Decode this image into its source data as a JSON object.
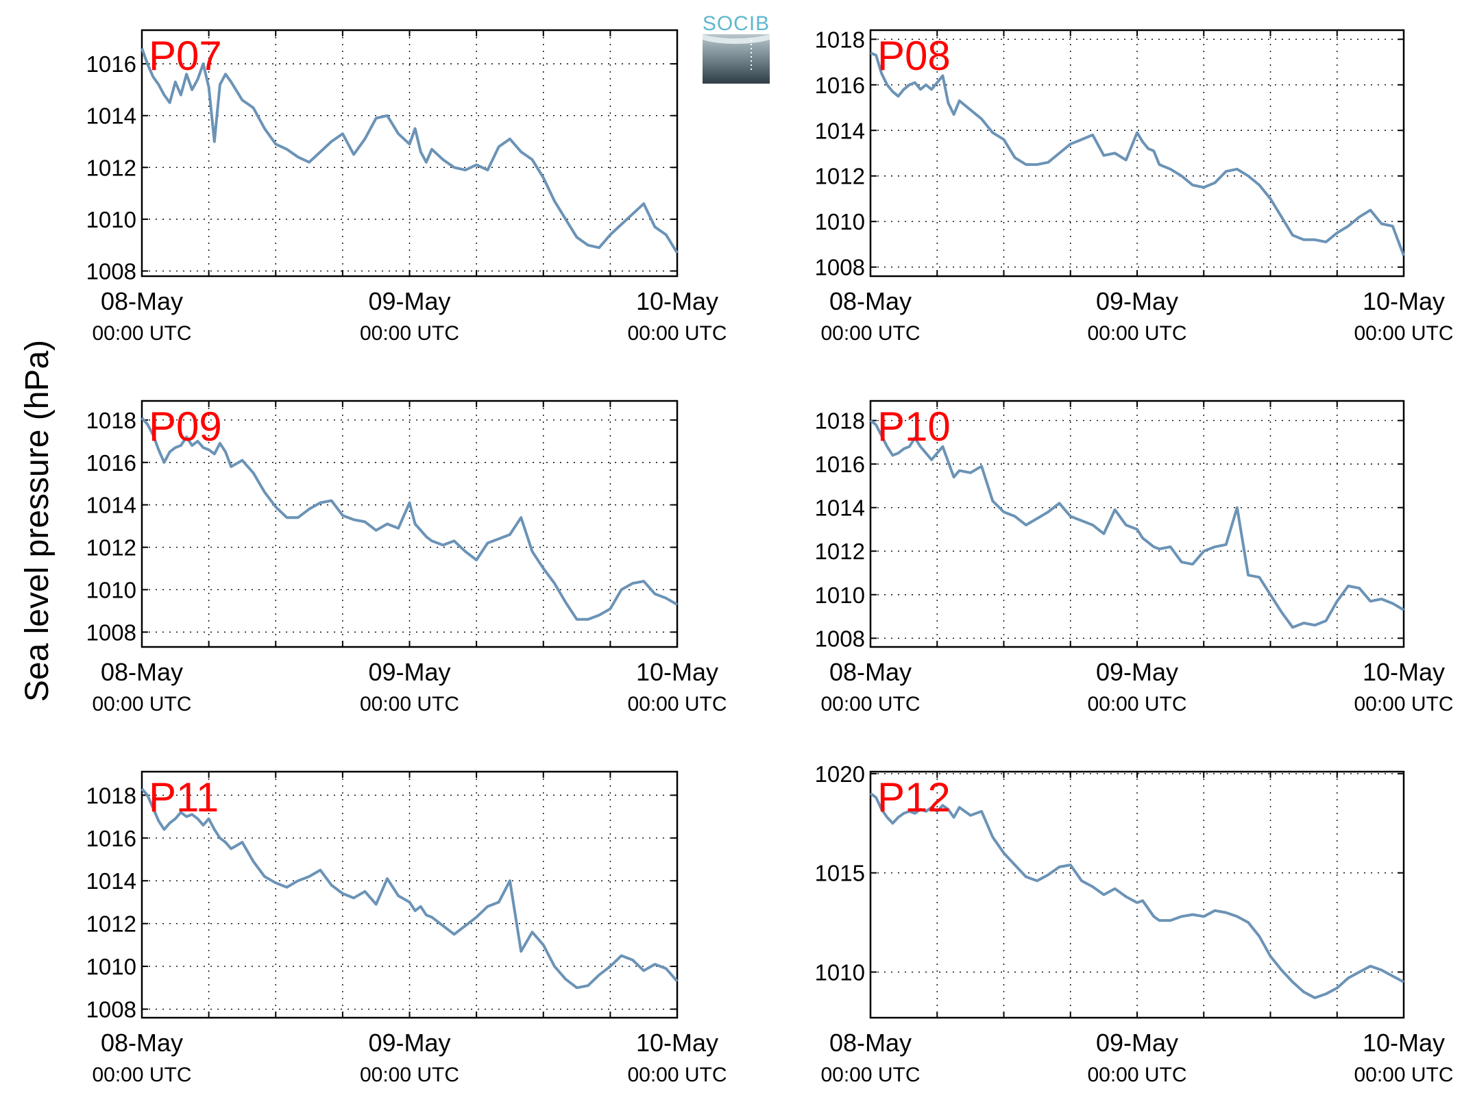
{
  "figure": {
    "ylabel": "Sea level pressure (hPa)",
    "logo_text": "SOCIB"
  },
  "chart_data": [
    {
      "type": "line",
      "title": "P07",
      "xlabel": "",
      "ylabel": "Sea level pressure (hPa)",
      "xlim": [
        0,
        48
      ],
      "ylim": [
        1007.8,
        1017.3
      ],
      "yticks": [
        1008,
        1010,
        1012,
        1014,
        1016
      ],
      "xticks": [
        0,
        24,
        48
      ],
      "xtick_labels": [
        [
          "08-May",
          "00:00 UTC"
        ],
        [
          "09-May",
          "00:00 UTC"
        ],
        [
          "10-May",
          "00:00 UTC"
        ]
      ],
      "x_minor_grid": [
        0,
        6,
        12,
        18,
        24,
        30,
        36,
        42,
        48
      ],
      "grid": true,
      "line_color": "#6b93b6",
      "series": [
        {
          "x": [
            0,
            0.5,
            1,
            1.5,
            2,
            2.5,
            3,
            3.5,
            4,
            4.5,
            5,
            5.5,
            6,
            6.5,
            7,
            7.5,
            8,
            9,
            10,
            11,
            12,
            13,
            14,
            15,
            16,
            17,
            18,
            19,
            20,
            21,
            22,
            23,
            24,
            24.5,
            25,
            25.5,
            26,
            27,
            28,
            29,
            30,
            31,
            32,
            33,
            34,
            35,
            36,
            37,
            38,
            39,
            40,
            41,
            42,
            43,
            44,
            45,
            46,
            47,
            48
          ],
          "y": [
            1016.6,
            1016.0,
            1015.5,
            1015.2,
            1014.8,
            1014.5,
            1015.3,
            1014.8,
            1015.6,
            1015.0,
            1015.4,
            1016.0,
            1015.1,
            1013.0,
            1015.2,
            1015.6,
            1015.3,
            1014.6,
            1014.3,
            1013.5,
            1012.9,
            1012.7,
            1012.4,
            1012.2,
            1012.6,
            1013.0,
            1013.3,
            1012.5,
            1013.1,
            1013.9,
            1014.0,
            1013.3,
            1012.9,
            1013.5,
            1012.6,
            1012.2,
            1012.7,
            1012.3,
            1012.0,
            1011.9,
            1012.1,
            1011.9,
            1012.8,
            1013.1,
            1012.6,
            1012.3,
            1011.6,
            1010.7,
            1010.0,
            1009.3,
            1009.0,
            1008.9,
            1009.4,
            1009.8,
            1010.2,
            1010.6,
            1009.7,
            1009.4,
            1008.7
          ]
        }
      ]
    },
    {
      "type": "line",
      "title": "P08",
      "xlabel": "",
      "ylabel": "Sea level pressure (hPa)",
      "xlim": [
        0,
        48
      ],
      "ylim": [
        1007.6,
        1018.4
      ],
      "yticks": [
        1008,
        1010,
        1012,
        1014,
        1016,
        1018
      ],
      "xticks": [
        0,
        24,
        48
      ],
      "xtick_labels": [
        [
          "08-May",
          "00:00 UTC"
        ],
        [
          "09-May",
          "00:00 UTC"
        ],
        [
          "10-May",
          "00:00 UTC"
        ]
      ],
      "x_minor_grid": [
        0,
        6,
        12,
        18,
        24,
        30,
        36,
        42,
        48
      ],
      "grid": true,
      "line_color": "#6b93b6",
      "series": [
        {
          "x": [
            0,
            0.5,
            1,
            1.5,
            2,
            2.5,
            3,
            3.5,
            4,
            4.5,
            5,
            5.5,
            6,
            6.5,
            7,
            7.5,
            8,
            9,
            10,
            11,
            12,
            13,
            14,
            15,
            16,
            17,
            18,
            19,
            20,
            21,
            22,
            23,
            24,
            24.5,
            25,
            25.5,
            26,
            27,
            28,
            29,
            30,
            31,
            32,
            33,
            34,
            35,
            36,
            37,
            38,
            39,
            40,
            41,
            42,
            43,
            44,
            45,
            46,
            47,
            48
          ],
          "y": [
            1017.4,
            1017.3,
            1016.5,
            1016.0,
            1015.7,
            1015.5,
            1015.8,
            1016.0,
            1016.1,
            1015.8,
            1016.0,
            1015.8,
            1016.1,
            1016.4,
            1015.2,
            1014.7,
            1015.3,
            1014.9,
            1014.5,
            1013.9,
            1013.6,
            1012.8,
            1012.5,
            1012.5,
            1012.6,
            1013.0,
            1013.4,
            1013.6,
            1013.8,
            1012.9,
            1013.0,
            1012.7,
            1013.9,
            1013.5,
            1013.2,
            1013.1,
            1012.5,
            1012.3,
            1012.0,
            1011.6,
            1011.5,
            1011.7,
            1012.2,
            1012.3,
            1012.0,
            1011.6,
            1011.0,
            1010.2,
            1009.4,
            1009.2,
            1009.2,
            1009.1,
            1009.5,
            1009.8,
            1010.2,
            1010.5,
            1009.9,
            1009.8,
            1008.5
          ]
        }
      ]
    },
    {
      "type": "line",
      "title": "P09",
      "xlabel": "",
      "ylabel": "Sea level pressure (hPa)",
      "xlim": [
        0,
        48
      ],
      "ylim": [
        1007.3,
        1018.9
      ],
      "yticks": [
        1008,
        1010,
        1012,
        1014,
        1016,
        1018
      ],
      "xticks": [
        0,
        24,
        48
      ],
      "xtick_labels": [
        [
          "08-May",
          "00:00 UTC"
        ],
        [
          "09-May",
          "00:00 UTC"
        ],
        [
          "10-May",
          "00:00 UTC"
        ]
      ],
      "x_minor_grid": [
        0,
        6,
        12,
        18,
        24,
        30,
        36,
        42,
        48
      ],
      "grid": true,
      "line_color": "#6b93b6",
      "series": [
        {
          "x": [
            0,
            0.5,
            1,
            1.5,
            2,
            2.5,
            3,
            3.5,
            4,
            4.5,
            5,
            5.5,
            6,
            6.5,
            7,
            7.5,
            8,
            9,
            10,
            11,
            12,
            13,
            14,
            15,
            16,
            17,
            18,
            19,
            20,
            21,
            22,
            23,
            24,
            24.5,
            25,
            25.5,
            26,
            27,
            28,
            29,
            30,
            31,
            32,
            33,
            34,
            35,
            36,
            37,
            38,
            39,
            40,
            41,
            42,
            43,
            44,
            45,
            46,
            47,
            48
          ],
          "y": [
            1018.1,
            1017.8,
            1017.3,
            1016.6,
            1016.0,
            1016.5,
            1016.7,
            1016.8,
            1017.2,
            1016.8,
            1017.0,
            1016.7,
            1016.6,
            1016.4,
            1016.9,
            1016.5,
            1015.8,
            1016.1,
            1015.5,
            1014.6,
            1013.9,
            1013.4,
            1013.4,
            1013.8,
            1014.1,
            1014.2,
            1013.5,
            1013.3,
            1013.2,
            1012.8,
            1013.1,
            1012.9,
            1014.1,
            1013.1,
            1012.8,
            1012.5,
            1012.3,
            1012.1,
            1012.3,
            1011.8,
            1011.4,
            1012.2,
            1012.4,
            1012.6,
            1013.4,
            1011.8,
            1011.0,
            1010.3,
            1009.4,
            1008.6,
            1008.6,
            1008.8,
            1009.1,
            1010.0,
            1010.3,
            1010.4,
            1009.8,
            1009.6,
            1009.3
          ]
        }
      ]
    },
    {
      "type": "line",
      "title": "P10",
      "xlabel": "",
      "ylabel": "Sea level pressure (hPa)",
      "xlim": [
        0,
        48
      ],
      "ylim": [
        1007.6,
        1018.9
      ],
      "yticks": [
        1008,
        1010,
        1012,
        1014,
        1016,
        1018
      ],
      "xticks": [
        0,
        24,
        48
      ],
      "xtick_labels": [
        [
          "08-May",
          "00:00 UTC"
        ],
        [
          "09-May",
          "00:00 UTC"
        ],
        [
          "10-May",
          "00:00 UTC"
        ]
      ],
      "x_minor_grid": [
        0,
        6,
        12,
        18,
        24,
        30,
        36,
        42,
        48
      ],
      "grid": true,
      "line_color": "#6b93b6",
      "series": [
        {
          "x": [
            0,
            0.5,
            1,
            1.5,
            2,
            2.5,
            3,
            3.5,
            4,
            4.5,
            5,
            5.5,
            6,
            6.5,
            7,
            7.5,
            8,
            9,
            10,
            11,
            12,
            13,
            14,
            15,
            16,
            17,
            18,
            19,
            20,
            21,
            22,
            23,
            24,
            24.5,
            25,
            25.5,
            26,
            27,
            28,
            29,
            30,
            31,
            32,
            33,
            34,
            35,
            36,
            37,
            38,
            39,
            40,
            41,
            42,
            43,
            44,
            45,
            46,
            47,
            48
          ],
          "y": [
            1018.0,
            1017.8,
            1017.3,
            1016.8,
            1016.4,
            1016.5,
            1016.7,
            1016.8,
            1017.2,
            1016.8,
            1016.5,
            1016.2,
            1016.5,
            1016.8,
            1016.1,
            1015.4,
            1015.7,
            1015.6,
            1015.9,
            1014.3,
            1013.8,
            1013.6,
            1013.2,
            1013.5,
            1013.8,
            1014.2,
            1013.6,
            1013.4,
            1013.2,
            1012.8,
            1013.9,
            1013.2,
            1013.0,
            1012.6,
            1012.4,
            1012.2,
            1012.1,
            1012.2,
            1011.5,
            1011.4,
            1012.0,
            1012.2,
            1012.3,
            1014.0,
            1010.9,
            1010.8,
            1010.0,
            1009.2,
            1008.5,
            1008.7,
            1008.6,
            1008.8,
            1009.7,
            1010.4,
            1010.3,
            1009.7,
            1009.8,
            1009.6,
            1009.3
          ]
        }
      ]
    },
    {
      "type": "line",
      "title": "P11",
      "xlabel": "",
      "ylabel": "Sea level pressure (hPa)",
      "xlim": [
        0,
        48
      ],
      "ylim": [
        1007.6,
        1019.1
      ],
      "yticks": [
        1008,
        1010,
        1012,
        1014,
        1016,
        1018
      ],
      "xticks": [
        0,
        24,
        48
      ],
      "xtick_labels": [
        [
          "08-May",
          "00:00 UTC"
        ],
        [
          "09-May",
          "00:00 UTC"
        ],
        [
          "10-May",
          "00:00 UTC"
        ]
      ],
      "x_minor_grid": [
        0,
        6,
        12,
        18,
        24,
        30,
        36,
        42,
        48
      ],
      "grid": true,
      "line_color": "#6b93b6",
      "series": [
        {
          "x": [
            0,
            0.5,
            1,
            1.5,
            2,
            2.5,
            3,
            3.5,
            4,
            4.5,
            5,
            5.5,
            6,
            6.5,
            7,
            7.5,
            8,
            9,
            10,
            11,
            12,
            13,
            14,
            15,
            16,
            17,
            18,
            19,
            20,
            21,
            22,
            23,
            24,
            24.5,
            25,
            25.5,
            26,
            27,
            28,
            29,
            30,
            31,
            32,
            33,
            34,
            35,
            36,
            37,
            38,
            39,
            40,
            41,
            42,
            43,
            44,
            45,
            46,
            47,
            48
          ],
          "y": [
            1018.3,
            1018.0,
            1017.4,
            1016.8,
            1016.4,
            1016.7,
            1016.9,
            1017.2,
            1017.0,
            1017.1,
            1016.9,
            1016.6,
            1016.9,
            1016.4,
            1016.0,
            1015.8,
            1015.5,
            1015.8,
            1014.9,
            1014.2,
            1013.9,
            1013.7,
            1014.0,
            1014.2,
            1014.5,
            1013.8,
            1013.4,
            1013.2,
            1013.5,
            1012.9,
            1014.1,
            1013.3,
            1013.0,
            1012.6,
            1012.8,
            1012.4,
            1012.3,
            1011.9,
            1011.5,
            1011.9,
            1012.3,
            1012.8,
            1013.0,
            1014.0,
            1010.7,
            1011.6,
            1011.0,
            1010.0,
            1009.4,
            1009.0,
            1009.1,
            1009.6,
            1010.0,
            1010.5,
            1010.3,
            1009.8,
            1010.1,
            1009.9,
            1009.3
          ]
        }
      ]
    },
    {
      "type": "line",
      "title": "P12",
      "xlabel": "",
      "ylabel": "Sea level pressure (hPa)",
      "xlim": [
        0,
        48
      ],
      "ylim": [
        1007.7,
        1020.1
      ],
      "yticks": [
        1010,
        1015,
        1020
      ],
      "xticks": [
        0,
        24,
        48
      ],
      "xtick_labels": [
        [
          "08-May",
          "00:00 UTC"
        ],
        [
          "09-May",
          "00:00 UTC"
        ],
        [
          "10-May",
          "00:00 UTC"
        ]
      ],
      "x_minor_grid": [
        0,
        6,
        12,
        18,
        24,
        30,
        36,
        42,
        48
      ],
      "grid": true,
      "line_color": "#6b93b6",
      "series": [
        {
          "x": [
            0,
            0.5,
            1,
            1.5,
            2,
            2.5,
            3,
            3.5,
            4,
            4.5,
            5,
            5.5,
            6,
            6.5,
            7,
            7.5,
            8,
            9,
            10,
            11,
            12,
            13,
            14,
            15,
            16,
            17,
            18,
            19,
            20,
            21,
            22,
            23,
            24,
            24.5,
            25,
            25.5,
            26,
            27,
            28,
            29,
            30,
            31,
            32,
            33,
            34,
            35,
            36,
            37,
            38,
            39,
            40,
            41,
            42,
            43,
            44,
            45,
            46,
            47,
            48
          ],
          "y": [
            1019.0,
            1018.8,
            1018.2,
            1017.8,
            1017.5,
            1017.8,
            1018.0,
            1018.1,
            1018.0,
            1018.2,
            1018.1,
            1018.3,
            1018.1,
            1018.4,
            1018.2,
            1017.8,
            1018.3,
            1017.9,
            1018.1,
            1016.8,
            1016.0,
            1015.4,
            1014.8,
            1014.6,
            1014.9,
            1015.3,
            1015.4,
            1014.6,
            1014.3,
            1013.9,
            1014.2,
            1013.8,
            1013.5,
            1013.6,
            1013.2,
            1012.8,
            1012.6,
            1012.6,
            1012.8,
            1012.9,
            1012.8,
            1013.1,
            1013.0,
            1012.8,
            1012.5,
            1011.8,
            1010.8,
            1010.1,
            1009.5,
            1009.0,
            1008.7,
            1008.9,
            1009.2,
            1009.7,
            1010.0,
            1010.3,
            1010.1,
            1009.8,
            1009.5
          ]
        }
      ]
    }
  ]
}
